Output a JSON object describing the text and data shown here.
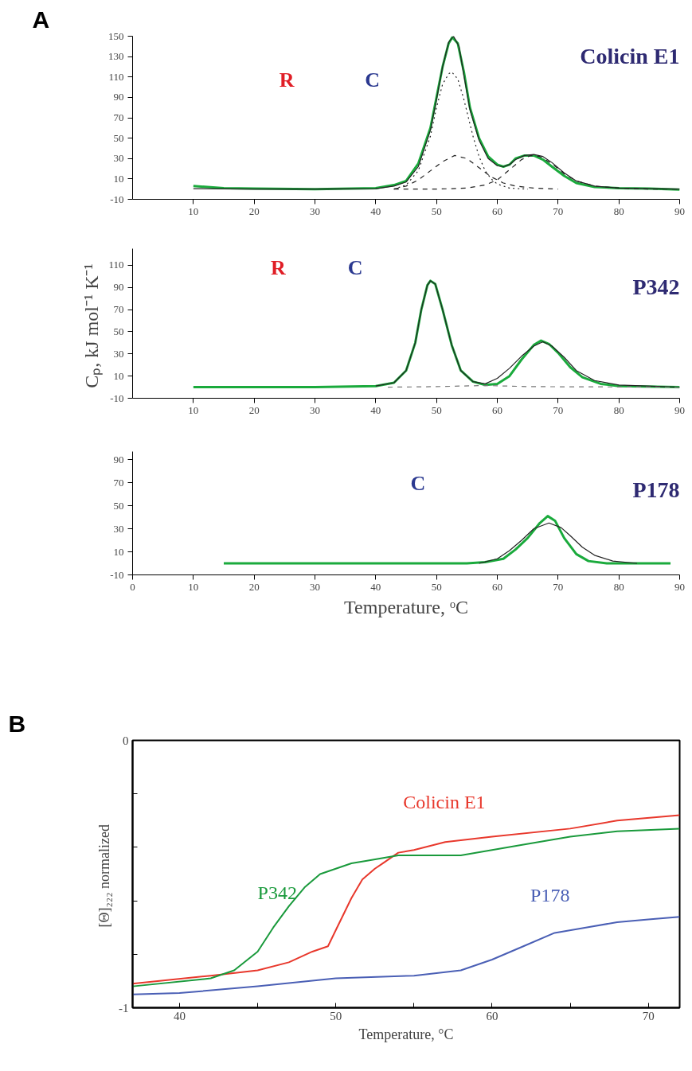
{
  "chart_data": [
    {
      "type": "line",
      "title": "Colicin E1",
      "xlim": [
        0,
        90
      ],
      "ylim": [
        -10,
        150
      ],
      "xticks": [
        10,
        20,
        30,
        40,
        50,
        60,
        70,
        80,
        90
      ],
      "yticks": [
        -10,
        10,
        30,
        50,
        70,
        90,
        110,
        130,
        150
      ],
      "grid": false,
      "annotations": [
        "A",
        "R",
        "C"
      ],
      "series": [
        {
          "color": "#1aaa3c",
          "x": [
            10,
            15,
            20,
            30,
            40,
            43,
            45,
            47,
            49,
            50,
            51,
            52,
            52.6,
            53.5,
            54.5,
            55.5,
            57,
            58.5,
            60,
            61,
            62,
            63,
            64.5,
            66,
            67.5,
            69,
            71,
            73,
            76,
            80,
            85,
            90
          ],
          "values": [
            3,
            1,
            0.5,
            0,
            1,
            4,
            8,
            25,
            60,
            90,
            120,
            143,
            149,
            143,
            115,
            80,
            50,
            32,
            24,
            22,
            24,
            30,
            33,
            33,
            29,
            22,
            13,
            6,
            2,
            1,
            0.5,
            -0.5
          ]
        },
        {
          "color": "#222222",
          "x": [
            10,
            20,
            30,
            40,
            43,
            45,
            47,
            49,
            50,
            51,
            52,
            52.8,
            53.7,
            54.5,
            55.5,
            57,
            58.5,
            60,
            61,
            62,
            63,
            64.5,
            66,
            67.5,
            69,
            71,
            73,
            76,
            80,
            85,
            90
          ],
          "values": [
            0.5,
            0,
            0,
            0.5,
            3,
            7,
            22,
            58,
            88,
            120,
            144,
            150,
            140,
            112,
            78,
            48,
            30,
            23,
            22,
            24,
            29,
            33,
            34,
            32,
            26,
            16,
            8,
            3,
            1,
            0.5,
            0
          ]
        },
        {
          "color": "#222222",
          "line_style": "dotted",
          "x": [
            43,
            45,
            47,
            49,
            50,
            51,
            52,
            52.5,
            53.5,
            54.5,
            56,
            57,
            58,
            59,
            60,
            62,
            65
          ],
          "values": [
            0,
            4,
            18,
            52,
            80,
            103,
            113,
            115,
            108,
            88,
            52,
            32,
            18,
            10,
            5,
            1,
            0
          ]
        },
        {
          "color": "#222222",
          "line_style": "dashed",
          "x": [
            43,
            45,
            47,
            49,
            51,
            53,
            55,
            57,
            59,
            61,
            63,
            66,
            70
          ],
          "values": [
            0,
            3,
            9,
            18,
            27,
            33,
            30,
            21,
            12,
            6,
            3,
            1,
            0
          ]
        },
        {
          "color": "#222222",
          "line_style": "dashed",
          "x": [
            43,
            50,
            55,
            58,
            60,
            62,
            64,
            65.5,
            67,
            69,
            71,
            73,
            76,
            80,
            85,
            90
          ],
          "values": [
            0,
            0,
            1,
            4,
            9,
            19,
            29,
            33,
            32,
            25,
            15,
            8,
            3,
            1,
            0,
            0
          ]
        }
      ]
    },
    {
      "type": "line",
      "title": "P342",
      "ylabel": "Cₚ,  kJ mol⁻¹ K⁻¹",
      "xlim": [
        0,
        90
      ],
      "ylim": [
        -10,
        125
      ],
      "xticks": [
        10,
        20,
        30,
        40,
        50,
        60,
        70,
        80,
        90
      ],
      "yticks": [
        -10,
        10,
        30,
        50,
        70,
        90,
        110
      ],
      "grid": false,
      "annotations": [
        "R",
        "C"
      ],
      "series": [
        {
          "color": "#1aaa3c",
          "x": [
            10,
            20,
            30,
            40,
            43,
            45,
            46.5,
            47.5,
            48.5,
            49,
            49.8,
            51,
            52.5,
            54,
            56,
            58,
            60,
            62,
            64,
            66,
            67.2,
            68.5,
            70,
            72,
            74,
            77,
            80,
            90
          ],
          "values": [
            0,
            0,
            0,
            1,
            4,
            15,
            40,
            70,
            92,
            96,
            93,
            70,
            38,
            15,
            5,
            2,
            3,
            10,
            25,
            38,
            42,
            39,
            31,
            18,
            9,
            3,
            1,
            0
          ]
        },
        {
          "color": "#222222",
          "x": [
            40,
            43,
            45,
            46.5,
            47.5,
            48.5,
            49,
            49.8,
            51,
            52.5,
            54,
            56,
            58,
            60,
            62,
            64,
            66,
            67.5,
            69,
            71,
            73,
            76,
            80,
            90
          ],
          "values": [
            1,
            4,
            15,
            40,
            70,
            92,
            96,
            93,
            70,
            38,
            15,
            5,
            3,
            8,
            17,
            28,
            37,
            41,
            37,
            27,
            15,
            6,
            2,
            0
          ]
        },
        {
          "color": "#777777",
          "line_style": "dashed",
          "x": [
            42,
            50,
            58,
            65,
            90
          ],
          "values": [
            0,
            0.5,
            1.5,
            0.5,
            0
          ]
        }
      ]
    },
    {
      "type": "line",
      "title": "P178",
      "xlabel": "Temperature, ᵒC",
      "xlim": [
        0,
        90
      ],
      "ylim": [
        -10,
        97
      ],
      "xticks": [
        0,
        10,
        20,
        30,
        40,
        50,
        60,
        70,
        80,
        90
      ],
      "yticks": [
        -10,
        10,
        30,
        50,
        70,
        90
      ],
      "grid": false,
      "annotations": [
        "C"
      ],
      "series": [
        {
          "color": "#1aaa3c",
          "x": [
            15,
            30,
            55,
            58,
            61,
            63,
            65,
            67,
            68.3,
            69.5,
            71,
            73,
            75,
            78,
            88.5
          ],
          "values": [
            0,
            0,
            0,
            1,
            4,
            12,
            22,
            35,
            41,
            37,
            22,
            8,
            2,
            0,
            0
          ]
        },
        {
          "color": "#222222",
          "x": [
            57,
            60,
            62,
            64,
            66,
            68.5,
            70.5,
            72,
            74,
            76,
            79,
            83
          ],
          "values": [
            0,
            4,
            11,
            20,
            30,
            35,
            31,
            24,
            14,
            7,
            2,
            0
          ]
        }
      ]
    },
    {
      "type": "line",
      "xlabel": "Temperature, °C",
      "ylabel": "[Θ]₂₂₂  normalized",
      "xlim": [
        37,
        72
      ],
      "ylim": [
        -1,
        0
      ],
      "xticks": [
        40,
        {
          "value": 45,
          "label": null
        },
        50,
        {
          "value": 55,
          "label": null
        },
        60,
        {
          "value": 65,
          "label": null
        },
        70
      ],
      "yticks": [
        -1,
        {
          "value": -0.8,
          "label": null
        },
        {
          "value": -0.6,
          "label": null
        },
        {
          "value": -0.4,
          "label": null
        },
        {
          "value": -0.2,
          "label": null
        },
        0
      ],
      "grid": false,
      "annotations": [
        "B"
      ],
      "series": [
        {
          "name": "Colicin E1",
          "color": "#e8382c",
          "x": [
            37,
            42,
            45,
            47,
            48.5,
            49.5,
            50,
            51,
            51.7,
            52.5,
            53,
            54,
            55,
            57,
            60,
            65,
            68,
            72
          ],
          "values": [
            -0.91,
            -0.88,
            -0.86,
            -0.83,
            -0.79,
            -0.77,
            -0.71,
            -0.59,
            -0.52,
            -0.48,
            -0.46,
            -0.42,
            -0.41,
            -0.38,
            -0.36,
            -0.33,
            -0.3,
            -0.28
          ]
        },
        {
          "name": "P342",
          "color": "#1a9a3c",
          "x": [
            37,
            42,
            43.5,
            45,
            46,
            47,
            48,
            49,
            50,
            51,
            52,
            54,
            58,
            60,
            62,
            65,
            68,
            72
          ],
          "values": [
            -0.92,
            -0.89,
            -0.86,
            -0.79,
            -0.7,
            -0.62,
            -0.55,
            -0.5,
            -0.48,
            -0.46,
            -0.45,
            -0.43,
            -0.43,
            -0.41,
            -0.39,
            -0.36,
            -0.34,
            -0.33
          ]
        },
        {
          "name": "P178",
          "color": "#4a5fb5",
          "x": [
            37,
            40,
            45,
            50,
            55,
            58,
            60,
            62,
            64,
            66,
            68,
            70,
            72
          ],
          "values": [
            -0.95,
            -0.945,
            -0.92,
            -0.89,
            -0.88,
            -0.86,
            -0.82,
            -0.77,
            -0.72,
            -0.7,
            -0.68,
            -0.67,
            -0.66
          ]
        }
      ]
    }
  ]
}
